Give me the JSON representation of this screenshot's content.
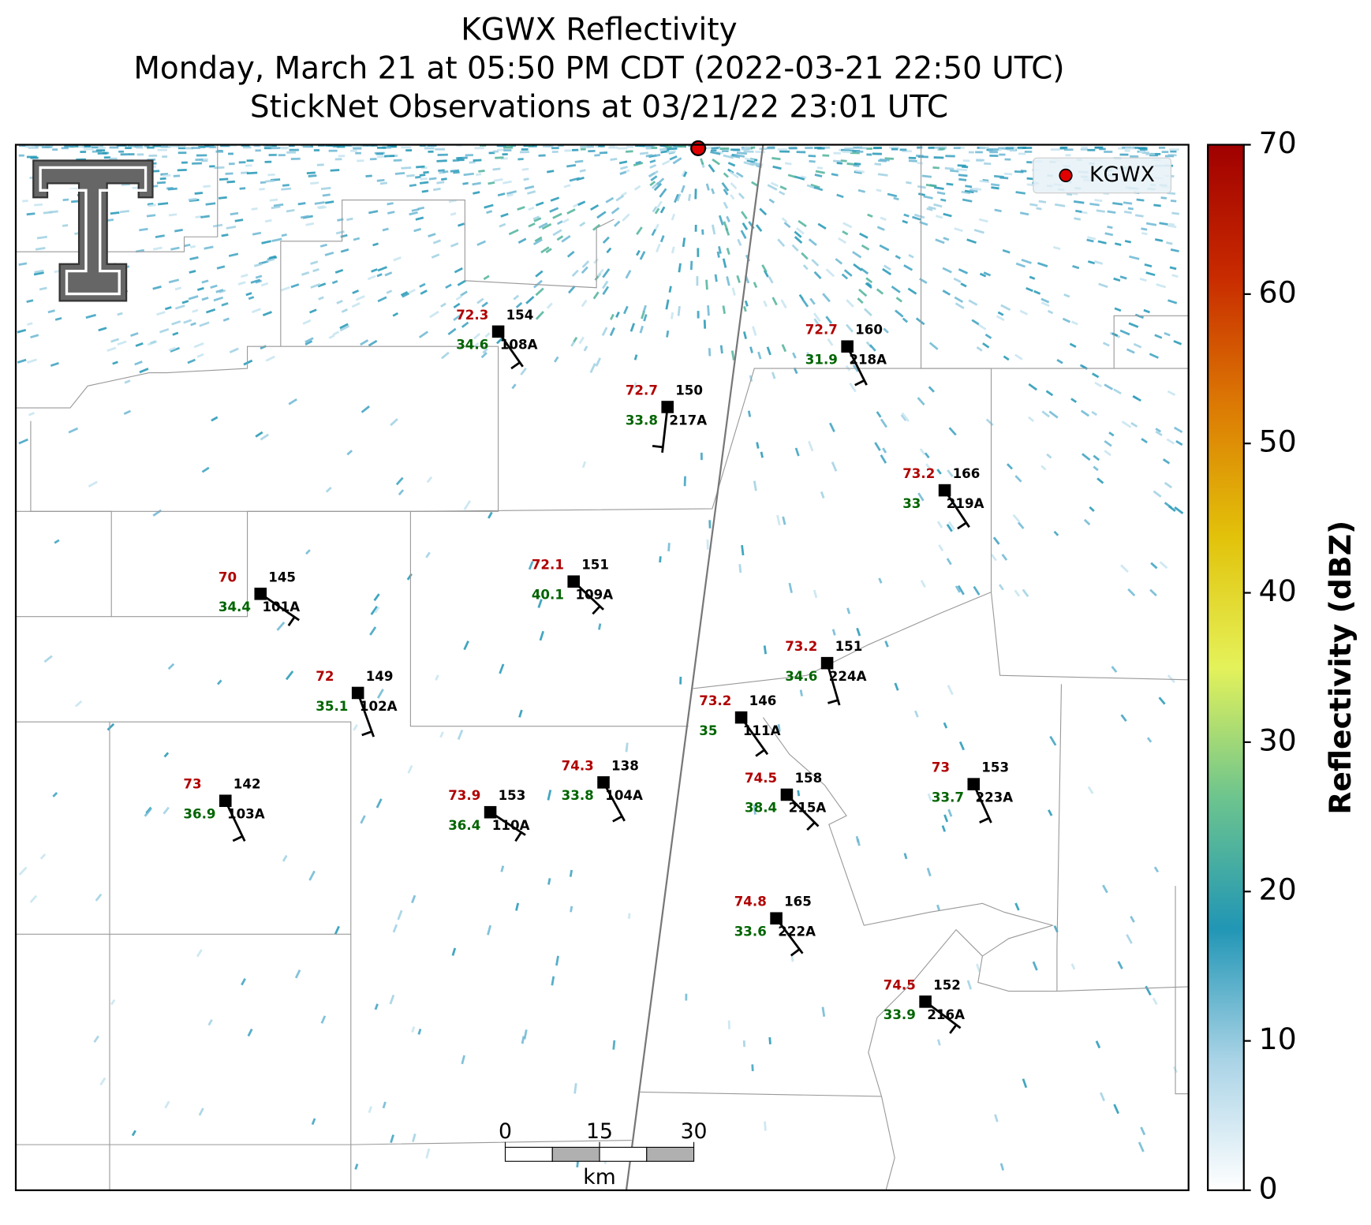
{
  "title_lines": [
    "KGWX Reflectivity",
    "Monday, March 21 at 05:50 PM CDT (2022-03-21 22:50 UTC)",
    "StickNet Observations at 03/21/22 23:01 UTC"
  ],
  "legend": {
    "label": "KGWX",
    "color": "#e00000"
  },
  "stations": [
    {
      "id": "108A",
      "temperature": 72.3,
      "dewpoint": 34.6,
      "pressure": 154
    },
    {
      "id": "218A",
      "temperature": 72.7,
      "dewpoint": 31.9,
      "pressure": 160
    },
    {
      "id": "217A",
      "temperature": 72.7,
      "dewpoint": 33.8,
      "pressure": 150
    },
    {
      "id": "219A",
      "temperature": 73.2,
      "dewpoint": 33.0,
      "pressure": 166
    },
    {
      "id": "109A",
      "temperature": 72.1,
      "dewpoint": 40.1,
      "pressure": 151
    },
    {
      "id": "101A",
      "temperature": 70.0,
      "dewpoint": 34.4,
      "pressure": 145
    },
    {
      "id": "224A",
      "temperature": 73.2,
      "dewpoint": 34.6,
      "pressure": 151
    },
    {
      "id": "102A",
      "temperature": 72.0,
      "dewpoint": 35.1,
      "pressure": 149
    },
    {
      "id": "111A",
      "temperature": 73.2,
      "dewpoint": 35.0,
      "pressure": 146
    },
    {
      "id": "104A",
      "temperature": 74.3,
      "dewpoint": 33.8,
      "pressure": 138
    },
    {
      "id": "215A",
      "temperature": 74.5,
      "dewpoint": 38.4,
      "pressure": 158
    },
    {
      "id": "223A",
      "temperature": 73.0,
      "dewpoint": 33.7,
      "pressure": 153
    },
    {
      "id": "103A",
      "temperature": 73.0,
      "dewpoint": 36.9,
      "pressure": 142
    },
    {
      "id": "110A",
      "temperature": 73.9,
      "dewpoint": 36.4,
      "pressure": 153
    },
    {
      "id": "222A",
      "temperature": 74.8,
      "dewpoint": 33.6,
      "pressure": 165
    },
    {
      "id": "216A",
      "temperature": 74.5,
      "dewpoint": 33.9,
      "pressure": 152
    }
  ],
  "colorbar": {
    "label": "Reflectivity (dBZ)",
    "lim": [
      0,
      70
    ],
    "ticks": [
      0,
      10,
      20,
      30,
      40,
      50,
      60,
      70
    ],
    "colors": [
      "#ffffff",
      "#a9d3e6",
      "#2196b5",
      "#6cc48e",
      "#e4f25a",
      "#e2c20a",
      "#dc7a04",
      "#c82a00",
      "#a00000"
    ]
  },
  "scale_bar": {
    "label": "km",
    "lim": [
      0,
      30
    ],
    "ticks": [
      0,
      15,
      30
    ]
  }
}
